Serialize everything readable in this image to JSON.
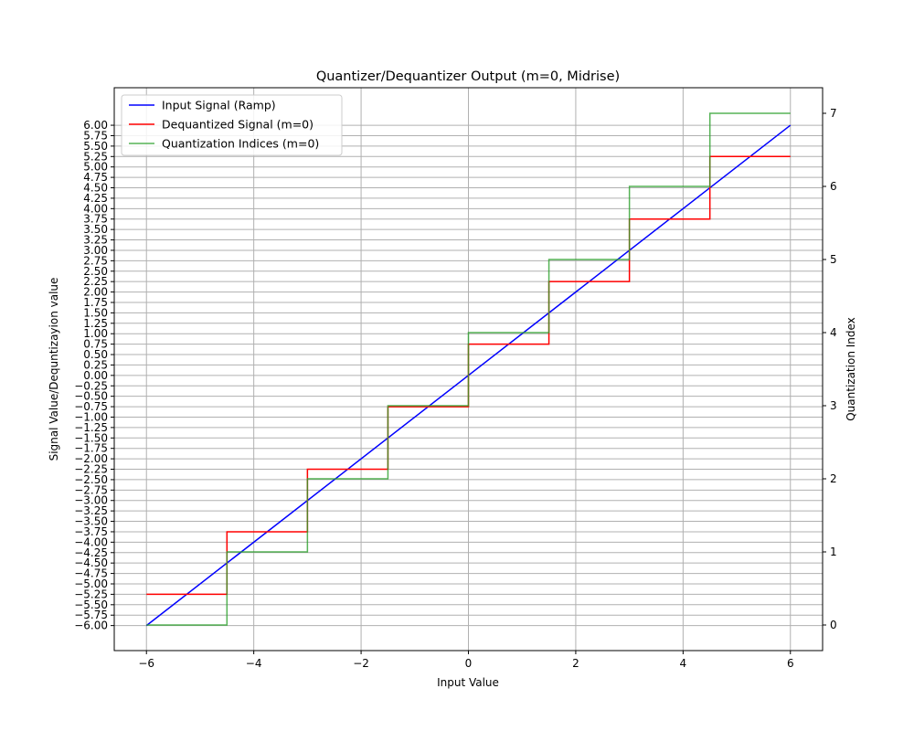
{
  "chart_data": {
    "type": "line",
    "title": "Quantizer/Dequantizer Output (m=0, Midrise)",
    "xlabel": "Input Value",
    "ylabel": "Signal Value/Dequntizayion value",
    "y2label": "Quantization Index",
    "xlim": [
      -6.6,
      6.6
    ],
    "ylim": [
      -6.6,
      6.9
    ],
    "y2lim": [
      -0.35,
      7.35
    ],
    "xticks": [
      -6,
      -4,
      -2,
      0,
      2,
      4,
      6
    ],
    "yticks": [
      -6.0,
      -5.75,
      -5.5,
      -5.25,
      -5.0,
      -4.75,
      -4.5,
      -4.25,
      -4.0,
      -3.75,
      -3.5,
      -3.25,
      -3.0,
      -2.75,
      -2.5,
      -2.25,
      -2.0,
      -1.75,
      -1.5,
      -1.25,
      -1.0,
      -0.75,
      -0.5,
      -0.25,
      0.0,
      0.25,
      0.5,
      0.75,
      1.0,
      1.25,
      1.5,
      1.75,
      2.0,
      2.25,
      2.5,
      2.75,
      3.0,
      3.25,
      3.5,
      3.75,
      4.0,
      4.25,
      4.5,
      4.75,
      5.0,
      5.25,
      5.5,
      5.75,
      6.0
    ],
    "y2ticks": [
      0,
      1,
      2,
      3,
      4,
      5,
      6,
      7
    ],
    "grid": true,
    "legend": "upper-left",
    "series": [
      {
        "name": "Input Signal (Ramp)",
        "color": "#0000ff",
        "axis": "left",
        "x": [
          -6,
          6
        ],
        "y": [
          -6,
          6
        ]
      },
      {
        "name": "Dequantized Signal (m=0)",
        "color": "#ff0000",
        "axis": "left",
        "x": [
          -6,
          -4.5,
          -4.5,
          -3,
          -3,
          -1.5,
          -1.5,
          0,
          0,
          1.5,
          1.5,
          3,
          3,
          4.5,
          4.5,
          6
        ],
        "y": [
          -5.25,
          -5.25,
          -3.75,
          -3.75,
          -2.25,
          -2.25,
          -0.75,
          -0.75,
          0.75,
          0.75,
          2.25,
          2.25,
          3.75,
          3.75,
          5.25,
          5.25
        ]
      },
      {
        "name": "Quantization Indices (m=0)",
        "color": "#2ca02c",
        "axis": "right",
        "x": [
          -6,
          -4.5,
          -4.5,
          -3,
          -3,
          -1.5,
          -1.5,
          0,
          0,
          1.5,
          1.5,
          3,
          3,
          4.5,
          4.5,
          6
        ],
        "y": [
          0,
          0,
          1,
          1,
          2,
          2,
          3,
          3,
          4,
          4,
          5,
          5,
          6,
          6,
          7,
          7
        ]
      }
    ]
  }
}
